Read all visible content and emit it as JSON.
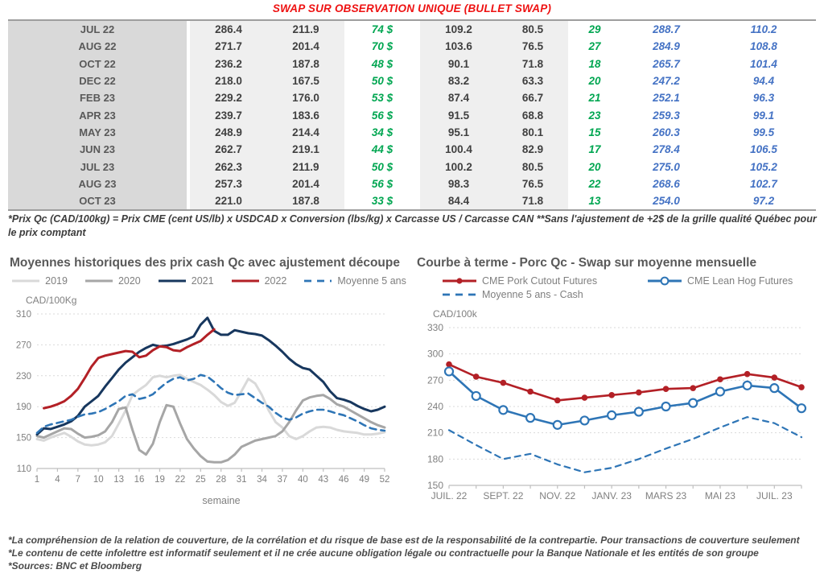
{
  "title": "SWAP SUR OBSERVATION UNIQUE (BULLET SWAP)",
  "colors": {
    "title_red": "#ee1111",
    "green": "#00a651",
    "blue": "#4472c4",
    "navy_2021": "#17375e",
    "red_2022": "#b32026",
    "gray_2019": "#d9d9d9",
    "gray_2020": "#a6a6a6",
    "steel_blue": "#2e75b6",
    "grid_gray": "#d9d9d9",
    "axis_gray": "#808080"
  },
  "table": {
    "rows": [
      {
        "month": "JUL 22",
        "values": [
          "286.4",
          "211.9",
          "74 $",
          "109.2",
          "80.5",
          "29",
          "288.7",
          "110.2"
        ]
      },
      {
        "month": "AUG 22",
        "values": [
          "271.7",
          "201.4",
          "70 $",
          "103.6",
          "76.5",
          "27",
          "284.9",
          "108.8"
        ]
      },
      {
        "month": "OCT 22",
        "values": [
          "236.2",
          "187.8",
          "48 $",
          "90.1",
          "71.8",
          "18",
          "265.7",
          "101.4"
        ]
      },
      {
        "month": "DEC 22",
        "values": [
          "218.0",
          "167.5",
          "50 $",
          "83.2",
          "63.3",
          "20",
          "247.2",
          "94.4"
        ]
      },
      {
        "month": "FEB 23",
        "values": [
          "229.2",
          "176.0",
          "53 $",
          "87.4",
          "66.7",
          "21",
          "252.1",
          "96.3"
        ]
      },
      {
        "month": "APR 23",
        "values": [
          "239.7",
          "183.6",
          "56 $",
          "91.5",
          "68.8",
          "23",
          "259.3",
          "99.1"
        ]
      },
      {
        "month": "MAY 23",
        "values": [
          "248.9",
          "214.4",
          "34 $",
          "95.1",
          "80.1",
          "15",
          "260.3",
          "99.5"
        ]
      },
      {
        "month": "JUN 23",
        "values": [
          "262.7",
          "219.1",
          "44 $",
          "100.4",
          "82.9",
          "17",
          "278.4",
          "106.5"
        ]
      },
      {
        "month": "JUL 23",
        "values": [
          "262.3",
          "211.9",
          "50 $",
          "100.2",
          "80.5",
          "20",
          "275.0",
          "105.2"
        ]
      },
      {
        "month": "AUG 23",
        "values": [
          "257.3",
          "201.4",
          "56 $",
          "98.3",
          "76.5",
          "22",
          "268.6",
          "102.7"
        ]
      },
      {
        "month": "OCT 23",
        "values": [
          "221.0",
          "187.8",
          "33 $",
          "84.4",
          "71.8",
          "13",
          "254.0",
          "97.2"
        ]
      }
    ]
  },
  "table_footnote": "*Prix Qc (CAD/100kg) = Prix CME (cent US/lb) x USDCAD x Conversion (lbs/kg) x Carcasse US / Carcasse CAN **Sans l'ajustement de +2$ de la grille qualité Québec pour le prix comptant",
  "chart_data": [
    {
      "type": "line",
      "title": "Moyennes historiques des prix cash Qc avec ajustement découpe",
      "unit_label": "CAD/100Kg",
      "xlabel": "semaine",
      "ylim": [
        110,
        310
      ],
      "ystep": 40,
      "xlim": [
        1,
        52
      ],
      "x_ticks": [
        1,
        4,
        7,
        10,
        13,
        16,
        19,
        22,
        25,
        28,
        31,
        34,
        37,
        40,
        43,
        46,
        49,
        52
      ],
      "grid": true,
      "legend_position": "top",
      "series": [
        {
          "name": "2019",
          "color": "#d9d9d9",
          "style": "solid",
          "values": [
            148,
            146,
            150,
            153,
            156,
            151,
            145,
            141,
            140,
            141,
            144,
            152,
            168,
            185,
            205,
            212,
            218,
            228,
            230,
            228,
            230,
            231,
            226,
            222,
            218,
            212,
            205,
            196,
            191,
            195,
            210,
            226,
            220,
            205,
            185,
            170,
            163,
            152,
            148,
            152,
            158,
            163,
            164,
            163,
            160,
            158,
            157,
            156,
            154,
            154,
            155,
            157
          ]
        },
        {
          "name": "2020",
          "color": "#a6a6a6",
          "style": "solid",
          "values": [
            152,
            150,
            154,
            158,
            162,
            161,
            155,
            150,
            151,
            153,
            158,
            170,
            187,
            189,
            160,
            134,
            128,
            142,
            170,
            192,
            190,
            168,
            148,
            136,
            126,
            119,
            118,
            118,
            121,
            128,
            138,
            142,
            146,
            148,
            150,
            152,
            158,
            170,
            185,
            198,
            202,
            204,
            205,
            200,
            193,
            190,
            185,
            180,
            175,
            170,
            166,
            163
          ]
        },
        {
          "name": "2021",
          "color": "#17375e",
          "style": "solid",
          "values": [
            154,
            162,
            161,
            164,
            167,
            171,
            178,
            190,
            197,
            204,
            216,
            227,
            238,
            247,
            254,
            261,
            266,
            270,
            268,
            269,
            271,
            274,
            277,
            281,
            296,
            305,
            288,
            283,
            283,
            289,
            287,
            285,
            284,
            282,
            276,
            269,
            261,
            252,
            245,
            240,
            238,
            230,
            222,
            210,
            201,
            199,
            196,
            191,
            187,
            184,
            186,
            190
          ]
        },
        {
          "name": "2022",
          "color": "#b32026",
          "style": "solid",
          "values": [
            null,
            188,
            190,
            193,
            197,
            204,
            213,
            227,
            242,
            253,
            256,
            258,
            260,
            262,
            261,
            254,
            256,
            263,
            268,
            267,
            263,
            262,
            267,
            271,
            275,
            283,
            290,
            null,
            null,
            null,
            null,
            null,
            null,
            null,
            null,
            null,
            null,
            null,
            null,
            null,
            null,
            null,
            null,
            null,
            null,
            null,
            null,
            null,
            null,
            null,
            null,
            null
          ]
        },
        {
          "name": "Moyenne 5 ans",
          "color": "#2e75b6",
          "style": "dashed",
          "values": [
            156,
            164,
            167,
            169,
            171,
            173,
            177,
            180,
            181,
            183,
            187,
            192,
            197,
            204,
            206,
            200,
            202,
            206,
            214,
            221,
            226,
            228,
            224,
            226,
            231,
            229,
            222,
            214,
            208,
            205,
            206,
            207,
            201,
            195,
            190,
            182,
            176,
            173,
            176,
            181,
            184,
            186,
            186,
            184,
            181,
            179,
            175,
            171,
            166,
            162,
            160,
            159
          ]
        }
      ]
    },
    {
      "type": "line",
      "title": "Courbe à terme - Porc Qc - Swap sur moyenne mensuelle",
      "unit_label": "CAD/100k",
      "xlabel": "",
      "ylim": [
        150,
        330
      ],
      "ystep": 30,
      "x_tick_labels": [
        "JUIL. 22",
        "",
        "SEPT. 22",
        "",
        "NOV. 22",
        "",
        "JANV. 23",
        "",
        "MARS 23",
        "",
        "MAI 23",
        "",
        "JUIL. 23",
        ""
      ],
      "grid": true,
      "legend_position": "top",
      "series": [
        {
          "name": "CME Pork Cutout Futures",
          "color": "#b32026",
          "style": "solid",
          "marker": "dot",
          "values": [
            288,
            274,
            267,
            257,
            247,
            250,
            253,
            256,
            260,
            261,
            271,
            277,
            273,
            262
          ]
        },
        {
          "name": "CME Lean Hog Futures",
          "color": "#2e75b6",
          "style": "solid",
          "marker": "circle",
          "values": [
            280,
            252,
            236,
            227,
            219,
            224,
            230,
            234,
            240,
            244,
            257,
            264,
            261,
            238
          ]
        },
        {
          "name": "Moyenne 5 ans - Cash",
          "color": "#2e75b6",
          "style": "dashed",
          "values": [
            213,
            196,
            180,
            186,
            174,
            165,
            170,
            180,
            192,
            203,
            216,
            228,
            221,
            205
          ]
        }
      ]
    }
  ],
  "footer_lines": [
    "*La compréhension de la relation de couverture, de la corrélation et du risque de base est de la responsabilité de la contrepartie. Pour transactions de couverture seulement",
    "*Le contenu de cette infolettre est informatif seulement et il ne crée aucune obligation légale ou contractuelle pour la Banque Nationale et les entités de son groupe",
    "*Sources: BNC et Bloomberg"
  ]
}
